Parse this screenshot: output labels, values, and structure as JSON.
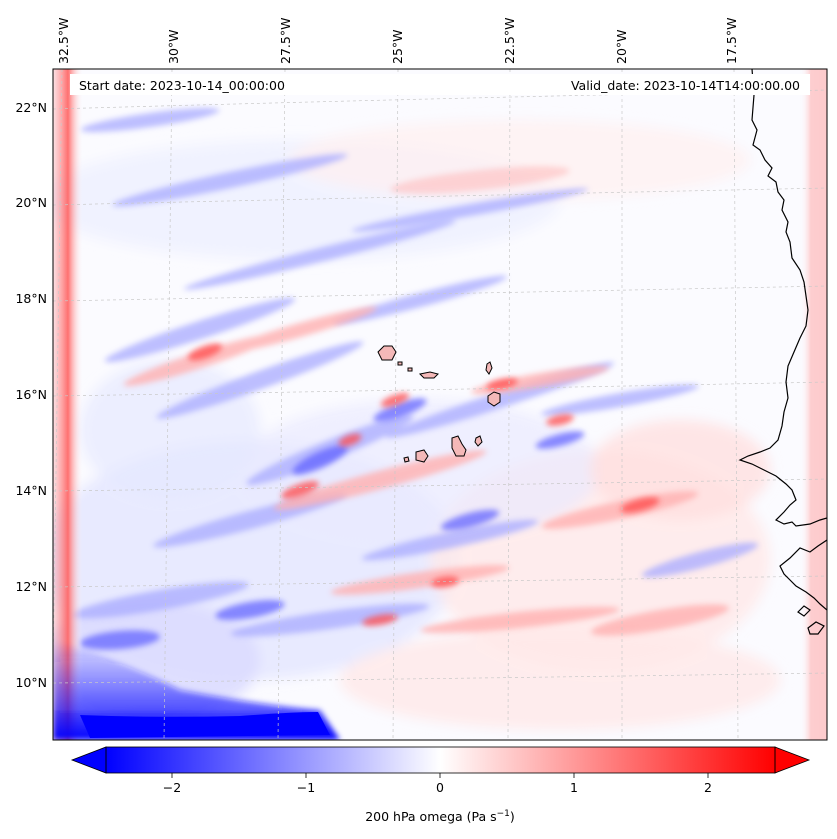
{
  "map": {
    "header_left": "Start date: 2023-10-14_00:00:00",
    "header_right": "Valid_date: 2023-10-14T14:00:00.00",
    "lon_labels": [
      "32.5°W",
      "30°W",
      "27.5°W",
      "25°W",
      "22.5°W",
      "20°W",
      "17.5°W"
    ],
    "lat_labels": [
      "22°N",
      "20°N",
      "18°N",
      "16°N",
      "14°N",
      "12°N",
      "10°N"
    ],
    "colors": {
      "negative": "#0000ff",
      "zero": "#ffffff",
      "positive": "#ff0000",
      "coast": "#000000",
      "grid": "#bfbfbf"
    }
  },
  "colorbar": {
    "label": "200 hPa omega (Pa s",
    "label_sup": "−1",
    "label_end": ")",
    "ticks": [
      "−2",
      "−1",
      "0",
      "1",
      "2"
    ],
    "range": [
      -2.6,
      2.6
    ]
  }
}
